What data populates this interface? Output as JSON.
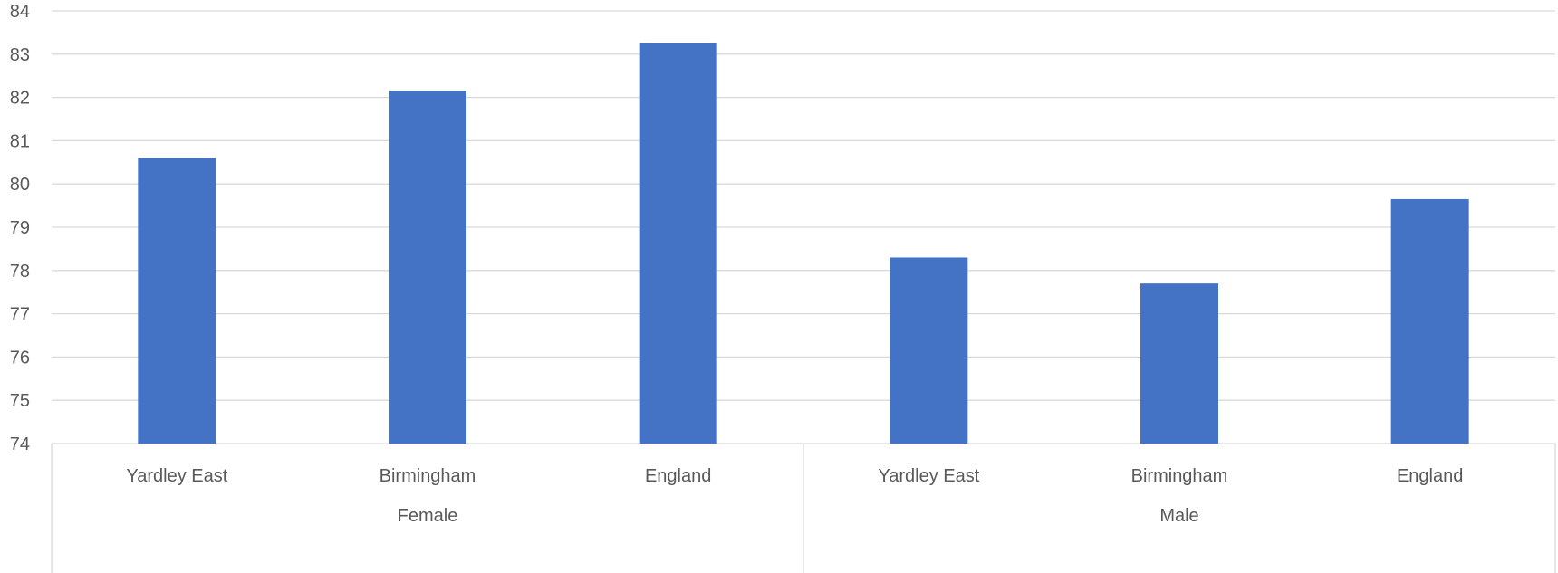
{
  "chart_data": {
    "type": "bar",
    "title": "",
    "xlabel": "",
    "ylabel": "",
    "ylim": [
      74,
      84
    ],
    "yticks": [
      74,
      75,
      76,
      77,
      78,
      79,
      80,
      81,
      82,
      83,
      84
    ],
    "grid": true,
    "groups": [
      {
        "name": "Female",
        "categories": [
          "Yardley East",
          "Birmingham",
          "England"
        ],
        "values": [
          80.6,
          82.15,
          83.25
        ]
      },
      {
        "name": "Male",
        "categories": [
          "Yardley East",
          "Birmingham",
          "England"
        ],
        "values": [
          78.3,
          77.7,
          79.65
        ]
      }
    ],
    "colors": {
      "bar": "#4472C4",
      "grid": "#D9D9D9",
      "text": "#595959"
    }
  }
}
